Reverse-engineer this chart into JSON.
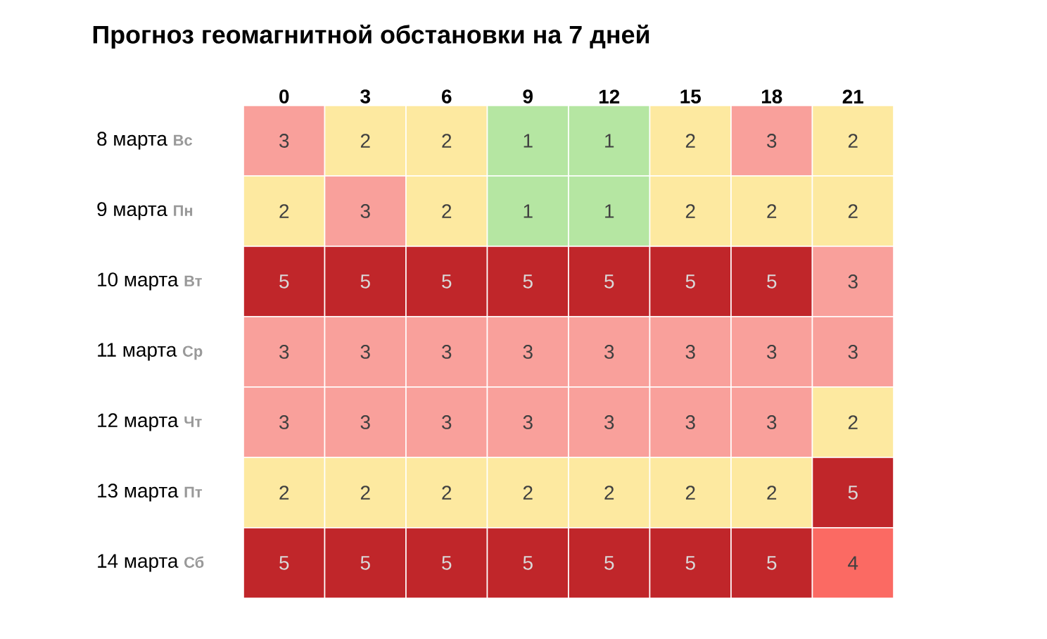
{
  "chart_data": {
    "type": "heatmap",
    "title": "Прогноз геомагнитной обстановки на 7 дней",
    "categories": [
      "0",
      "3",
      "6",
      "9",
      "12",
      "15",
      "18",
      "21"
    ],
    "y_categories": [
      "8 марта",
      "9 марта",
      "10 марта",
      "11 марта",
      "12 марта",
      "13 марта",
      "14 марта"
    ],
    "y2_categories": [
      "Вс",
      "Пн",
      "Вт",
      "Ср",
      "Чт",
      "Пт",
      "Сб"
    ],
    "cells": [
      [
        3,
        2,
        2,
        1,
        1,
        2,
        3,
        2
      ],
      [
        2,
        3,
        2,
        1,
        1,
        2,
        2,
        2
      ],
      [
        5,
        5,
        5,
        5,
        5,
        5,
        5,
        3
      ],
      [
        3,
        3,
        3,
        3,
        3,
        3,
        3,
        3
      ],
      [
        3,
        3,
        3,
        3,
        3,
        3,
        3,
        2
      ],
      [
        2,
        2,
        2,
        2,
        2,
        2,
        2,
        5
      ],
      [
        5,
        5,
        5,
        5,
        5,
        5,
        5,
        4
      ]
    ],
    "colors": [
      "#b5e6a2",
      "#fde9a0",
      "#f9a09b",
      "#fb6a63",
      "#c0262a"
    ],
    "data_labels": true
  }
}
